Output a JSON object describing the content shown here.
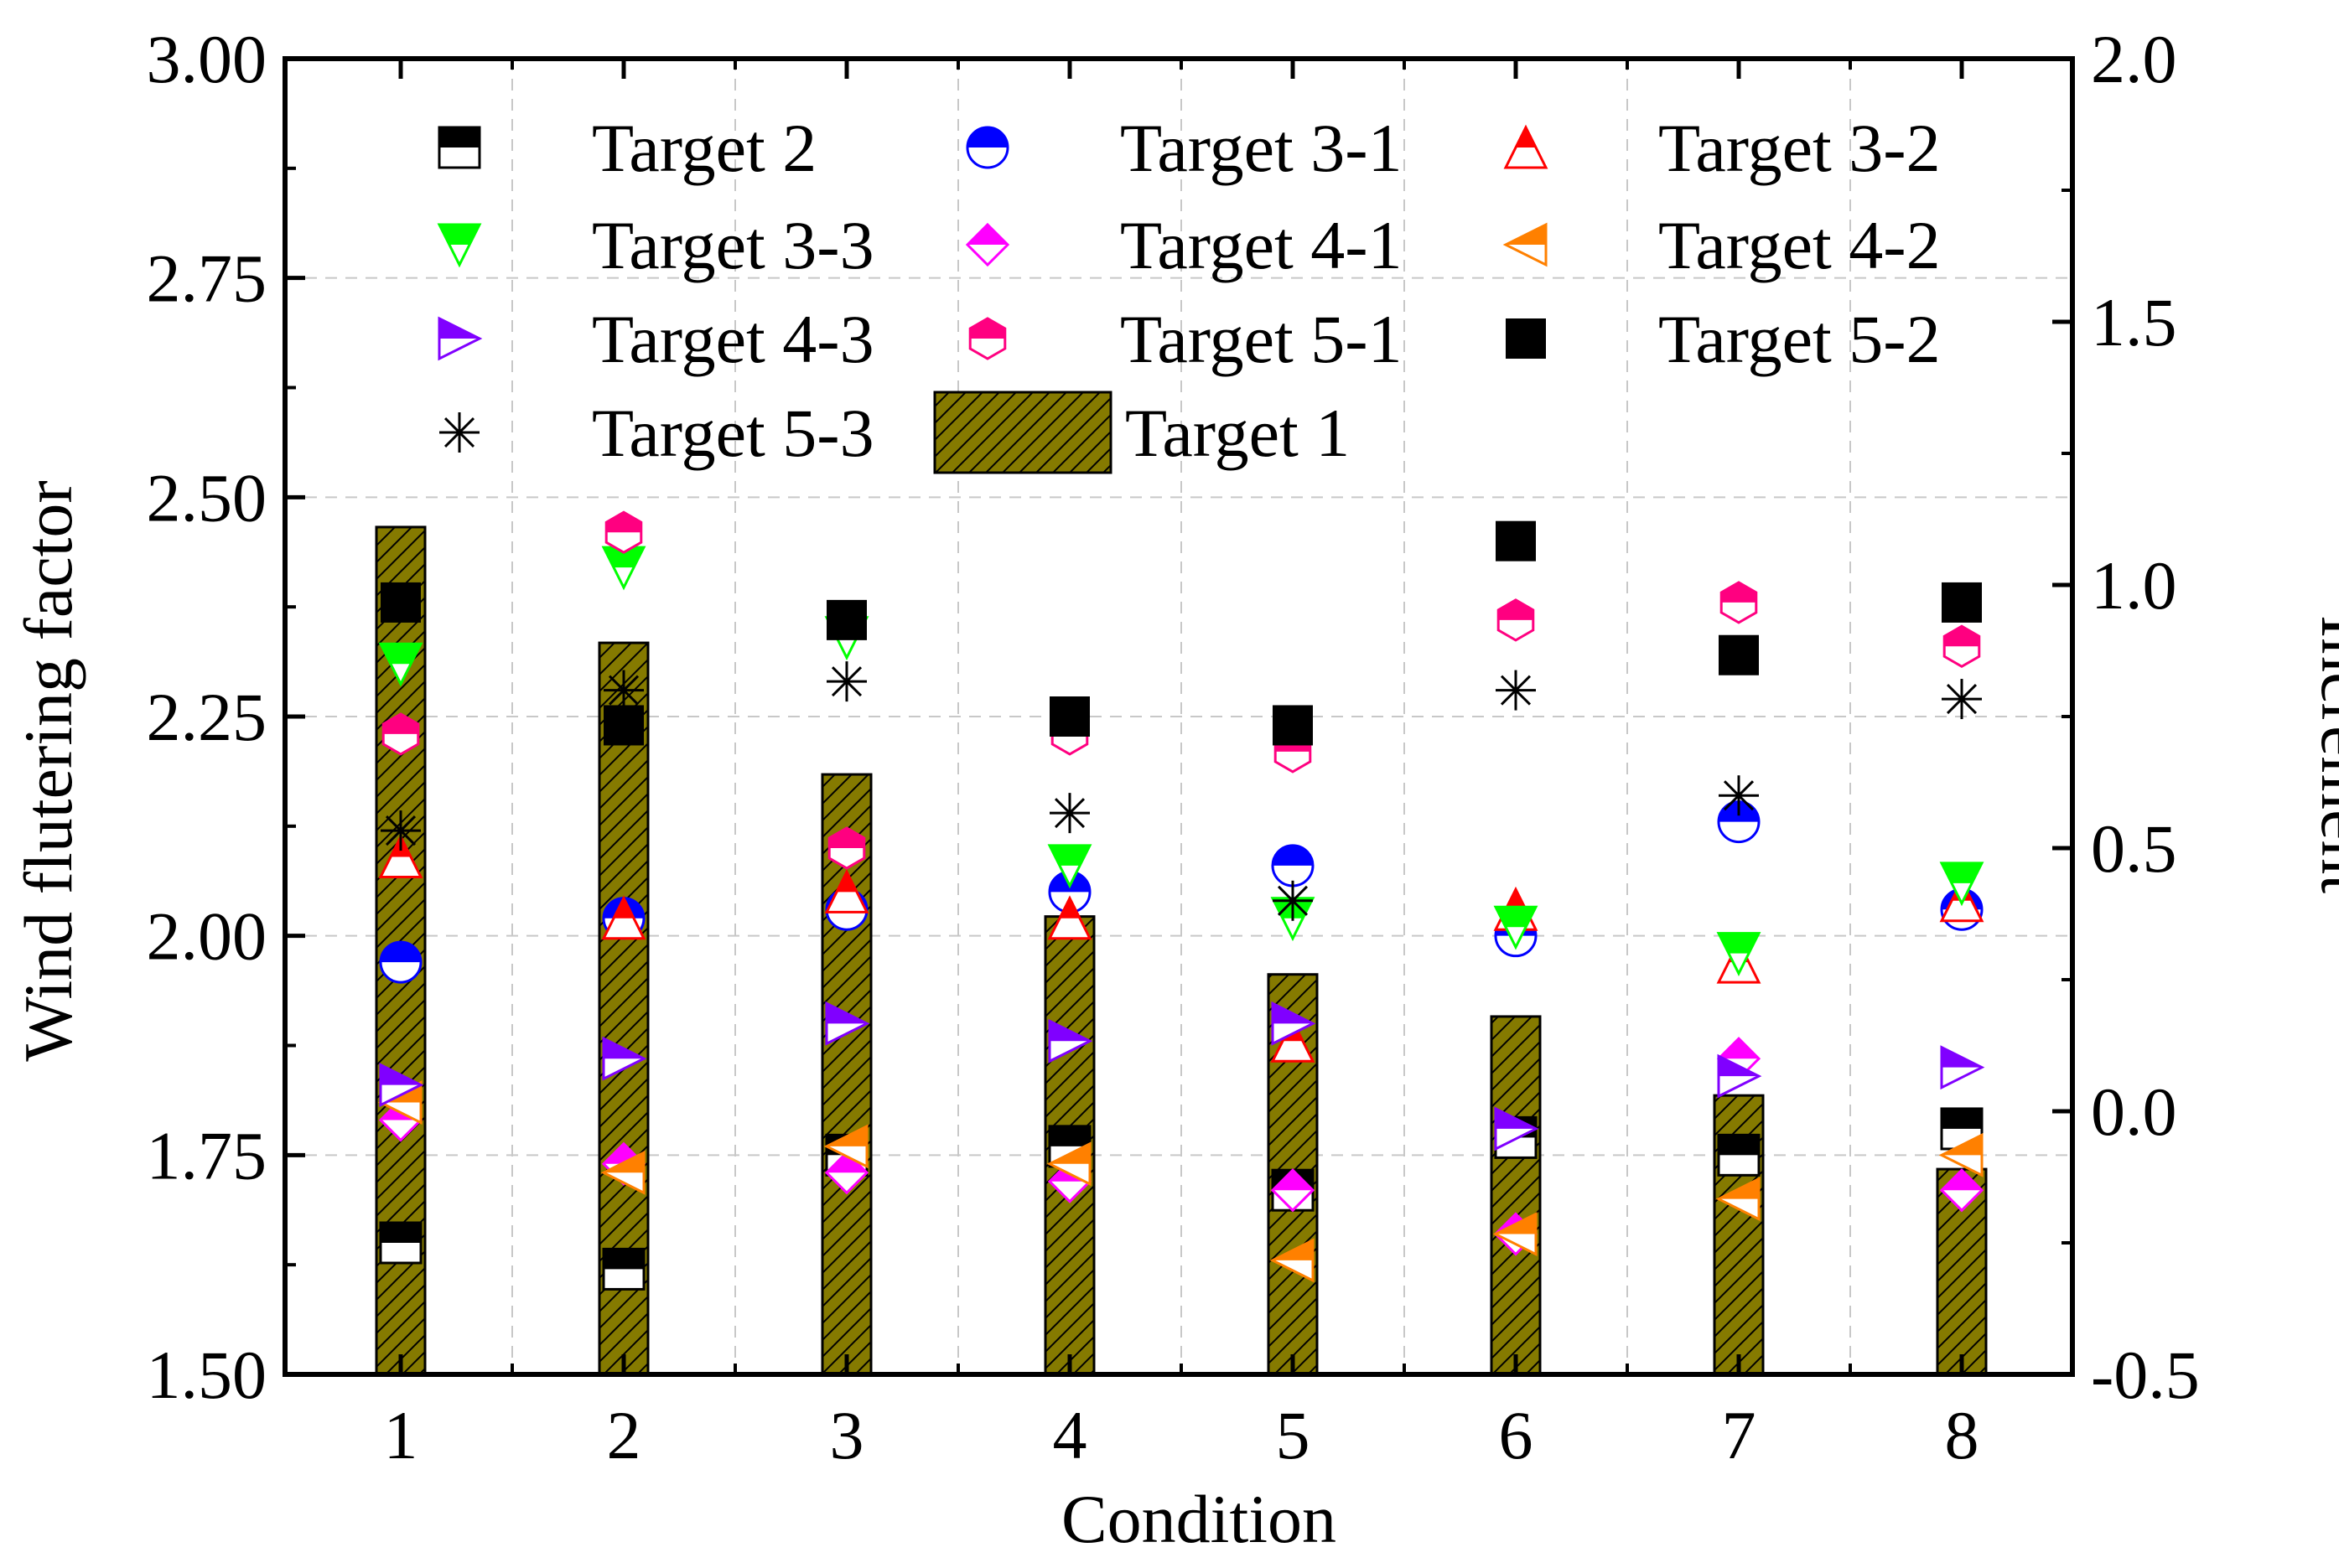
{
  "chart_data": {
    "type": "bar+scatter",
    "xlabel": "Condition",
    "ylabel": "Wind flutering factor",
    "y2label": "Increment",
    "categories": [
      "1",
      "2",
      "3",
      "4",
      "5",
      "6",
      "7",
      "8"
    ],
    "ylim": [
      1.5,
      3.0
    ],
    "yticks": [
      "1.50",
      "1.75",
      "2.00",
      "2.25",
      "2.50",
      "2.75",
      "3.00"
    ],
    "y2lim": [
      -0.5,
      2.0
    ],
    "y2ticks": [
      "-0.5",
      "0.0",
      "0.5",
      "1.0",
      "1.5",
      "2.0"
    ],
    "grid": true,
    "legend_position": "top",
    "bar_series": {
      "name": "Target 1",
      "axis": "right",
      "color": "#857a00",
      "values": [
        1.11,
        0.89,
        0.64,
        0.37,
        0.26,
        0.18,
        0.03,
        -0.11
      ]
    },
    "series": [
      {
        "name": "Target 2",
        "marker": "square-half",
        "color": "#000000",
        "values": [
          1.65,
          1.62,
          1.75,
          1.76,
          1.71,
          1.77,
          1.75,
          1.78
        ]
      },
      {
        "name": "Target 3-1",
        "marker": "circle-half",
        "color": "#0000ff",
        "values": [
          1.97,
          2.02,
          2.03,
          2.05,
          2.08,
          2.0,
          2.13,
          2.03
        ]
      },
      {
        "name": "Target 3-2",
        "marker": "triangle-up",
        "color": "#ff0000",
        "values": [
          2.09,
          2.02,
          2.05,
          2.02,
          1.88,
          2.03,
          1.97,
          2.04
        ]
      },
      {
        "name": "Target 3-3",
        "marker": "triangle-down",
        "color": "#00ff00",
        "values": [
          2.31,
          2.42,
          2.34,
          2.08,
          2.02,
          2.01,
          1.98,
          2.06
        ]
      },
      {
        "name": "Target 4-1",
        "marker": "diamond",
        "color": "#ff00ff",
        "values": [
          1.79,
          1.74,
          1.73,
          1.72,
          1.71,
          1.66,
          1.86,
          1.71
        ]
      },
      {
        "name": "Target 4-2",
        "marker": "triangle-left",
        "color": "#ff8000",
        "values": [
          1.81,
          1.73,
          1.76,
          1.74,
          1.63,
          1.66,
          1.7,
          1.75
        ]
      },
      {
        "name": "Target 4-3",
        "marker": "triangle-right",
        "color": "#8000ff",
        "values": [
          1.83,
          1.86,
          1.9,
          1.88,
          1.9,
          1.78,
          1.84,
          1.85
        ]
      },
      {
        "name": "Target 5-1",
        "marker": "hexagon-half",
        "color": "#ff0080",
        "values": [
          2.23,
          2.46,
          2.1,
          2.23,
          2.21,
          2.36,
          2.38,
          2.33
        ]
      },
      {
        "name": "Target 5-2",
        "marker": "square-filled",
        "color": "#000000",
        "values": [
          2.38,
          2.24,
          2.36,
          2.25,
          2.24,
          2.45,
          2.32,
          2.38
        ]
      },
      {
        "name": "Target 5-3",
        "marker": "asterisk",
        "color": "#000000",
        "values": [
          2.12,
          2.28,
          2.29,
          2.14,
          2.04,
          2.28,
          2.16,
          2.27
        ]
      }
    ]
  }
}
